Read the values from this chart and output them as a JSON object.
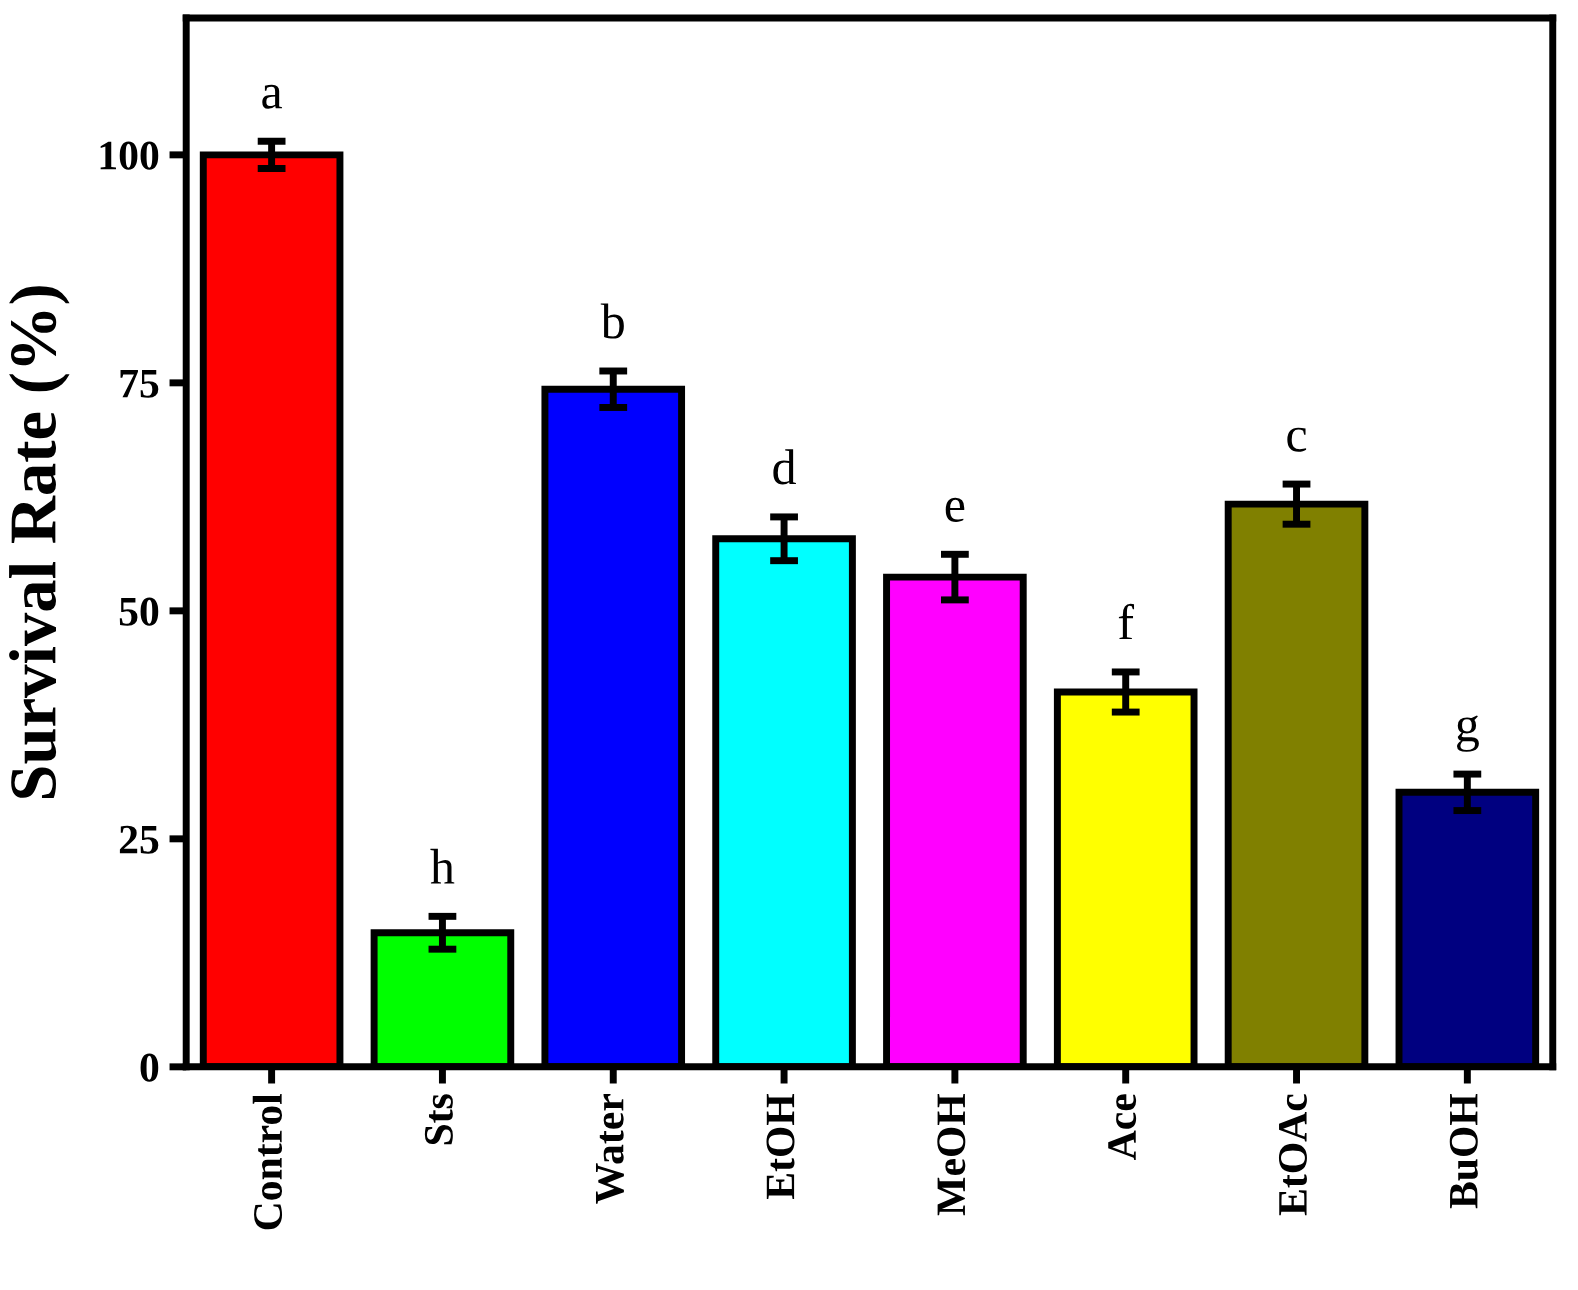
{
  "chart_data": {
    "type": "bar",
    "ylabel": "Survival Rate (%)",
    "categories": [
      "Control",
      "Sts",
      "Water",
      "EtOH",
      "MeOH",
      "Ace",
      "EtOAc",
      "BuOH"
    ],
    "values": [
      100,
      14.7,
      74.3,
      57.9,
      53.7,
      41.1,
      61.7,
      30.1
    ],
    "errors": [
      1.5,
      1.8,
      2.0,
      2.4,
      2.5,
      2.2,
      2.2,
      2.0
    ],
    "colors": [
      "#ff0000",
      "#00ff00",
      "#0000ff",
      "#00ffff",
      "#ff00ff",
      "#ffff00",
      "#808000",
      "#000080"
    ],
    "ylim": [
      0,
      115
    ],
    "yticks": [
      0,
      25,
      50,
      75,
      100
    ],
    "grid": false,
    "annotations": [
      "a",
      "h",
      "b",
      "d",
      "e",
      "f",
      "c",
      "g"
    ]
  }
}
